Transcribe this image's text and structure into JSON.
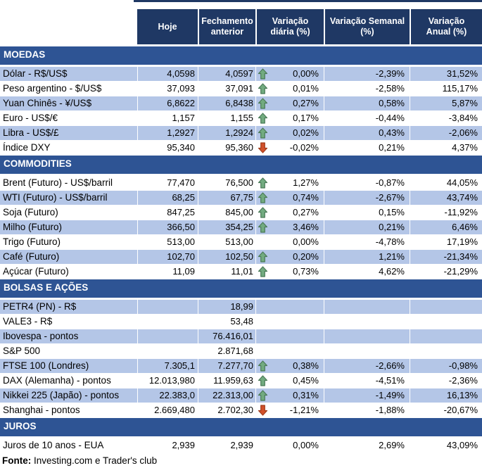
{
  "chart_data": {
    "type": "table",
    "columns": [
      "Hoje",
      "Fechamento anterior",
      "Variação diária (%)",
      "Variação Semanal (%)",
      "Variação Anual (%)"
    ],
    "sections": [
      {
        "title": "MOEDAS",
        "first_row_shaded": true,
        "rows": [
          {
            "label": "Dólar - R$/US$",
            "today": "4,0598",
            "prev": "4,0597",
            "arrow": "up",
            "daily": "0,00%",
            "weekly": "-2,39%",
            "annual": "31,52%"
          },
          {
            "label": "Peso argentino - $/US$",
            "today": "37,093",
            "prev": "37,091",
            "arrow": "up",
            "daily": "0,01%",
            "weekly": "-2,58%",
            "annual": "115,17%"
          },
          {
            "label": "Yuan Chinês - ¥/US$",
            "today": "6,8622",
            "prev": "6,8438",
            "arrow": "up",
            "daily": "0,27%",
            "weekly": "0,58%",
            "annual": "5,87%"
          },
          {
            "label": "Euro - US$/€",
            "today": "1,157",
            "prev": "1,155",
            "arrow": "up",
            "daily": "0,17%",
            "weekly": "-0,44%",
            "annual": "-3,84%"
          },
          {
            "label": "Libra - US$/£",
            "today": "1,2927",
            "prev": "1,2924",
            "arrow": "up",
            "daily": "0,02%",
            "weekly": "0,43%",
            "annual": "-2,06%"
          },
          {
            "label": "Índice DXY",
            "today": "95,340",
            "prev": "95,360",
            "arrow": "down",
            "daily": "-0,02%",
            "weekly": "0,21%",
            "annual": "4,37%"
          }
        ]
      },
      {
        "title": "COMMODITIES",
        "first_row_shaded": false,
        "rows": [
          {
            "label": "Brent (Futuro) - US$/barril",
            "today": "77,470",
            "prev": "76,500",
            "arrow": "up",
            "daily": "1,27%",
            "weekly": "-0,87%",
            "annual": "44,05%"
          },
          {
            "label": "WTI (Futuro) - US$/barril",
            "today": "68,25",
            "prev": "67,75",
            "arrow": "up",
            "daily": "0,74%",
            "weekly": "-2,67%",
            "annual": "43,74%"
          },
          {
            "label": "Soja (Futuro)",
            "today": "847,25",
            "prev": "845,00",
            "arrow": "up",
            "daily": "0,27%",
            "weekly": "0,15%",
            "annual": "-11,92%"
          },
          {
            "label": "Milho (Futuro)",
            "today": "366,50",
            "prev": "354,25",
            "arrow": "up",
            "daily": "3,46%",
            "weekly": "0,21%",
            "annual": "6,46%"
          },
          {
            "label": "Trigo (Futuro)",
            "today": "513,00",
            "prev": "513,00",
            "arrow": "",
            "daily": "0,00%",
            "weekly": "-4,78%",
            "annual": "17,19%"
          },
          {
            "label": "Café (Futuro)",
            "today": "102,70",
            "prev": "102,50",
            "arrow": "up",
            "daily": "0,20%",
            "weekly": "1,21%",
            "annual": "-21,34%"
          },
          {
            "label": "Açúcar (Futuro)",
            "today": "11,09",
            "prev": "11,01",
            "arrow": "up",
            "daily": "0,73%",
            "weekly": "4,62%",
            "annual": "-21,29%"
          }
        ]
      },
      {
        "title": "BOLSAS E AÇÕES",
        "first_row_shaded": true,
        "rows": [
          {
            "label": "PETR4 (PN) - R$",
            "today": "",
            "prev": "18,99",
            "arrow": "",
            "daily": "",
            "weekly": "",
            "annual": ""
          },
          {
            "label": "VALE3 - R$",
            "today": "",
            "prev": "53,48",
            "arrow": "",
            "daily": "",
            "weekly": "",
            "annual": ""
          },
          {
            "label": "Ibovespa - pontos",
            "today": "",
            "prev": "76.416,01",
            "arrow": "",
            "daily": "",
            "weekly": "",
            "annual": ""
          },
          {
            "label": "S&P 500",
            "today": "",
            "prev": "2.871,68",
            "arrow": "",
            "daily": "",
            "weekly": "",
            "annual": ""
          },
          {
            "label": "FTSE 100 (Londres)",
            "today": "7.305,1",
            "prev": "7.277,70",
            "arrow": "up",
            "daily": "0,38%",
            "weekly": "-2,66%",
            "annual": "-0,98%"
          },
          {
            "label": "DAX (Alemanha) - pontos",
            "today": "12.013,980",
            "prev": "11.959,63",
            "arrow": "up",
            "daily": "0,45%",
            "weekly": "-4,51%",
            "annual": "-2,36%"
          },
          {
            "label": "Nikkei 225 (Japão) - pontos",
            "today": "22.383,0",
            "prev": "22.313,00",
            "arrow": "up",
            "daily": "0,31%",
            "weekly": "-1,49%",
            "annual": "16,13%"
          },
          {
            "label": "Shanghai - pontos",
            "today": "2.669,480",
            "prev": "2.702,30",
            "arrow": "down",
            "daily": "-1,21%",
            "weekly": "-1,88%",
            "annual": "-20,67%"
          }
        ]
      },
      {
        "title": "JUROS",
        "first_row_shaded": false,
        "rows": [
          {
            "label": "Juros de 10 anos - EUA",
            "today": "2,939",
            "prev": "2,939",
            "arrow": "",
            "daily": "0,00%",
            "weekly": "2,69%",
            "annual": "43,09%"
          }
        ]
      }
    ],
    "footer_bold": "Fonte:",
    "footer_text": " Investing.com e Trader's club"
  },
  "colors": {
    "header_bg": "#1F3864",
    "band_bg": "#2E5494",
    "stripe_bg": "#B4C6E7",
    "up_arrow_fill": "#72AB80",
    "up_arrow_border": "#4A7A57",
    "down_arrow_fill": "#D2512B",
    "down_arrow_border": "#A03C1B"
  }
}
